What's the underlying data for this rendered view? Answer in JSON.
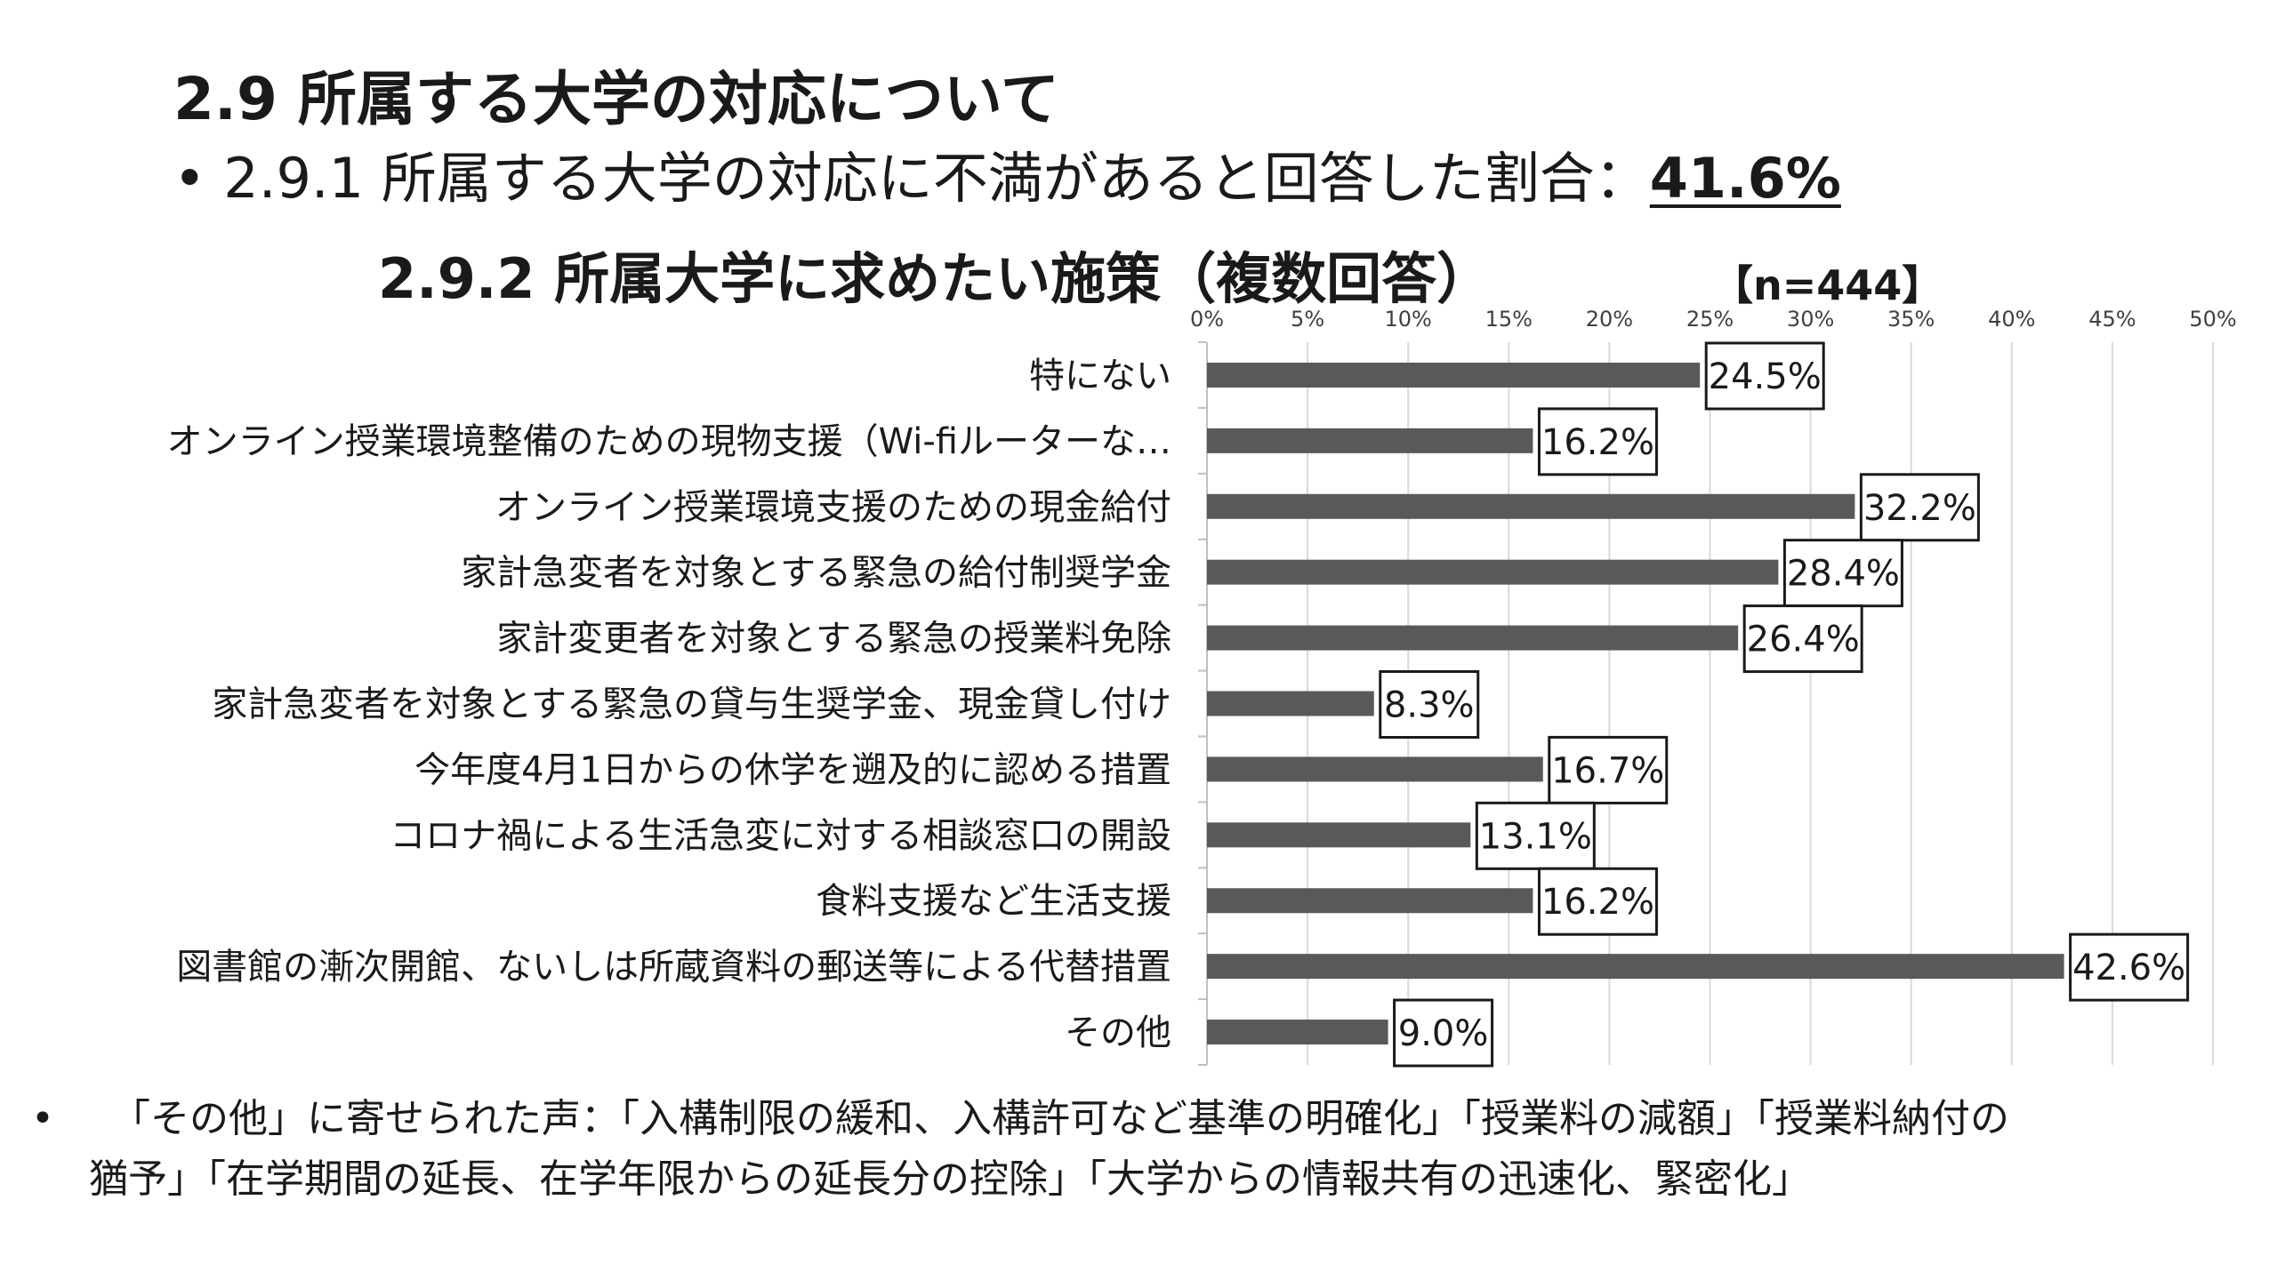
{
  "heading": {
    "section_title": "2.9 所属する大学の対応について",
    "bullet": "•",
    "subtitle_text": "2.9.1 所属する大学の対応に不満があると回答した割合：",
    "subtitle_value": "41.6%",
    "chart_title": "2.9.2 所属大学に求めたい施策（複数回答）",
    "sample_size": "【n=444】"
  },
  "chart_data": {
    "type": "bar",
    "orientation": "horizontal",
    "title": "2.9.2 所属大学に求めたい施策（複数回答）",
    "categories": [
      "特にない",
      "オンライン授業環境整備のための現物支援（Wi-fiルーターな…",
      "オンライン授業環境支援のための現金給付",
      "家計急変者を対象とする緊急の給付制奨学金",
      "家計変更者を対象とする緊急の授業料免除",
      "家計急変者を対象とする緊急の貸与生奨学金、現金貸し付け",
      "今年度4月1日からの休学を遡及的に認める措置",
      "コロナ禍による生活急変に対する相談窓口の開設",
      "食料支援など生活支援",
      "図書館の漸次開館、ないしは所蔵資料の郵送等による代替措置",
      "その他"
    ],
    "values": [
      24.5,
      16.2,
      32.2,
      28.4,
      26.4,
      8.3,
      16.7,
      13.1,
      16.2,
      42.6,
      9.0
    ],
    "data_labels": [
      "24.5%",
      "16.2%",
      "32.2%",
      "28.4%",
      "26.4%",
      "8.3%",
      "16.7%",
      "13.1%",
      "16.2%",
      "42.6%",
      "9.0%"
    ],
    "x_ticks": [
      "0%",
      "5%",
      "10%",
      "15%",
      "20%",
      "25%",
      "30%",
      "35%",
      "40%",
      "45%",
      "50%"
    ],
    "xlim": [
      0,
      50
    ],
    "axis_position": "top",
    "grid": true,
    "bar_color": "#595959"
  },
  "footnote": {
    "bullet": "•",
    "line1": "「その他」に寄せられた声：「入構制限の緩和、入構許可など基準の明確化」「授業料の減額」「授業料納付の",
    "line2": "猶予」「在学期間の延長、在学年限からの延長分の控除」「大学からの情報共有の迅速化、緊密化」"
  }
}
